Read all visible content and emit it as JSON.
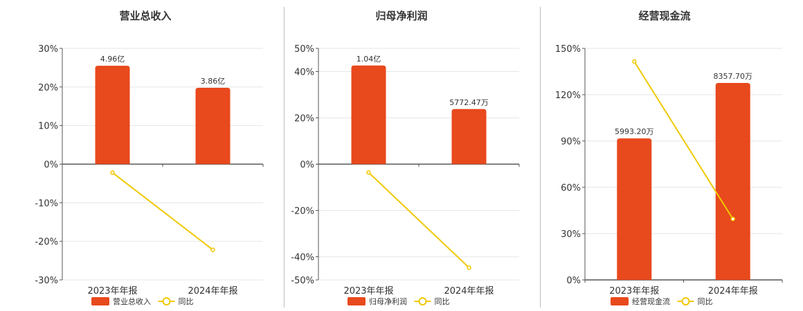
{
  "colors": {
    "bar": "#e8491d",
    "line": "#f0c800",
    "grid": "#e6e6e6",
    "axis": "#555555"
  },
  "chart_data": [
    {
      "type": "bar",
      "title": "营业总收入",
      "categories": [
        "2023年年报",
        "2024年年报"
      ],
      "y_ticks": [
        "30%",
        "20%",
        "10%",
        "0%",
        "-10%",
        "-20%",
        "-30%"
      ],
      "ylim": [
        -30,
        30
      ],
      "series": [
        {
          "name": "营业总收入",
          "kind": "bar",
          "values": [
            25.5,
            19.8
          ],
          "labels": [
            "4.96亿",
            "3.86亿"
          ]
        },
        {
          "name": "同比",
          "kind": "line",
          "values": [
            -2.2,
            -22.2
          ]
        }
      ]
    },
    {
      "type": "bar",
      "title": "归母净利润",
      "categories": [
        "2023年年报",
        "2024年年报"
      ],
      "y_ticks": [
        "50%",
        "40%",
        "20%",
        "0%",
        "-20%",
        "-40%",
        "-50%"
      ],
      "ylim": [
        -50,
        50
      ],
      "series": [
        {
          "name": "归母净利润",
          "kind": "bar",
          "values": [
            42.6,
            23.8
          ],
          "labels": [
            "1.04亿",
            "5772.47万"
          ]
        },
        {
          "name": "同比",
          "kind": "line",
          "values": [
            -3.6,
            -44.7
          ]
        }
      ]
    },
    {
      "type": "bar",
      "title": "经营现金流",
      "categories": [
        "2023年年报",
        "2024年年报"
      ],
      "y_ticks": [
        "150%",
        "120%",
        "90%",
        "60%",
        "30%",
        "0%"
      ],
      "ylim": [
        0,
        150
      ],
      "series": [
        {
          "name": "经营现金流",
          "kind": "bar",
          "values": [
            91.7,
            127.6
          ],
          "labels": [
            "5993.20万",
            "8357.70万"
          ]
        },
        {
          "name": "同比",
          "kind": "line",
          "values": [
            141.5,
            39.5
          ]
        }
      ]
    }
  ]
}
